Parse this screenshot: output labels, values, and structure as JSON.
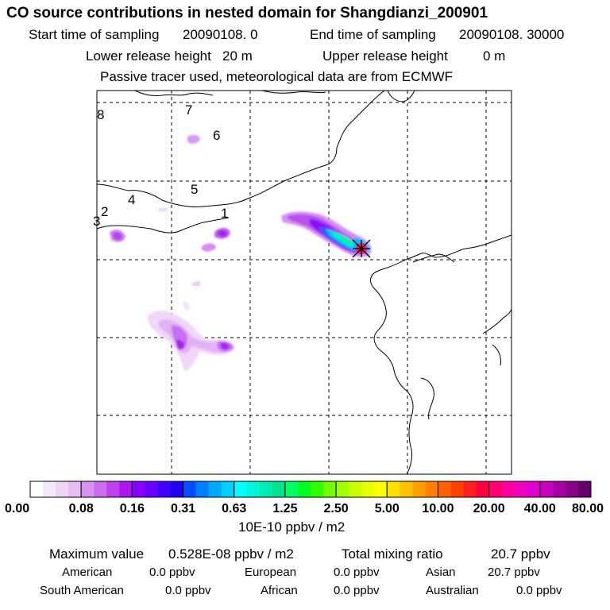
{
  "header": {
    "title": "CO  source contributions in nested domain for Shangdianzi_200901",
    "start_label": "Start time of sampling",
    "start_value": "20090108.    0",
    "end_label": "End time of sampling",
    "end_value": "20090108. 30000",
    "lower_label": "Lower release height",
    "lower_value": "20 m",
    "upper_label": "Upper release height",
    "upper_value": "0 m",
    "tracer_note": "Passive tracer used, meteorological data are from ECMWF"
  },
  "colors": {
    "coast": "#000000",
    "grid": "#000000",
    "marker": "#cc0000"
  },
  "chart_data": {
    "type": "heatmap",
    "title": "CO  source contributions in nested domain for Shangdianzi_200901",
    "colorbar_unit": "10E-10 ppbv / m2",
    "colorbar_ticks": [
      "0.00",
      "0.08",
      "0.16",
      "0.31",
      "0.63",
      "1.25",
      "2.50",
      "5.00",
      "10.00",
      "20.00",
      "40.00",
      "80.00"
    ],
    "colorbar_colors": [
      [
        "#ffffff",
        "#f6e8fb",
        "#efd3f7",
        "#e5bdf4"
      ],
      [
        "#d891f0",
        "#cc6cee",
        "#bf40ee",
        "#ae16ee"
      ],
      [
        "#8c00ff",
        "#6a00ff",
        "#4200ff",
        "#2000f0"
      ],
      [
        "#0050ff",
        "#0080ff",
        "#00a8ff",
        "#00d0ff"
      ],
      [
        "#00ffff",
        "#00f5dc",
        "#00ecb4",
        "#00e28c"
      ],
      [
        "#00ff60",
        "#00ff20",
        "#30ff00",
        "#70ff00"
      ],
      [
        "#a0ff00",
        "#c8ff00",
        "#e8ff00",
        "#ffff00"
      ],
      [
        "#ffe000",
        "#ffc000",
        "#ffa000",
        "#ff8000"
      ],
      [
        "#ff6000",
        "#ff4000",
        "#ff2020",
        "#ff0040"
      ],
      [
        "#ff0070",
        "#ff00a0",
        "#f000c0",
        "#e000d0"
      ],
      [
        "#c800c0",
        "#a800a8",
        "#880088",
        "#660066"
      ]
    ],
    "region_labels": [
      "1",
      "2",
      "3",
      "4",
      "5",
      "6",
      "7",
      "8"
    ],
    "receptor": "Shangdianzi",
    "plumes": [
      {
        "name": "main-plume",
        "level": "1.25-5.00"
      },
      {
        "name": "south-cluster",
        "level": "0.08-0.31"
      },
      {
        "name": "west-patches",
        "level": "0.08-0.31"
      }
    ]
  },
  "footer": {
    "max_label": "Maximum value",
    "max_value": "0.528E-08 ppbv / m2",
    "total_label": "Total mixing ratio",
    "total_value": "20.7 ppbv",
    "regions": [
      {
        "name": "American",
        "value": "0.0 ppbv"
      },
      {
        "name": "European",
        "value": "0.0 ppbv"
      },
      {
        "name": "Asian",
        "value": "20.7 ppbv"
      },
      {
        "name": "South American",
        "value": "0.0 ppbv"
      },
      {
        "name": "African",
        "value": "0.0 ppbv"
      },
      {
        "name": "Australian",
        "value": "0.0 ppbv"
      }
    ]
  }
}
